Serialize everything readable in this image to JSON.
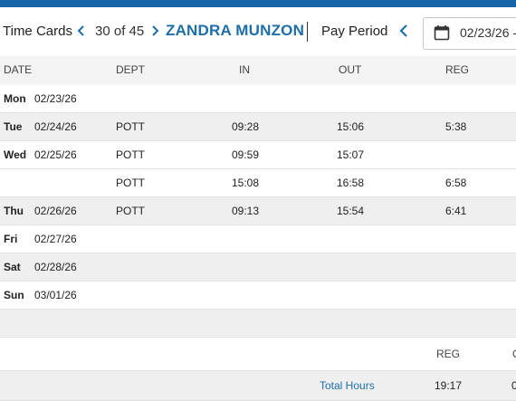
{
  "toolbar": {
    "time_cards_label": "Time Cards",
    "record_position": "30 of 45",
    "employee_name": "ZANDRA MUNZON",
    "pay_period_label": "Pay Period",
    "pay_period_date": "02/23/26 -",
    "icons": [
      "chevron-left-icon",
      "chevron-right-icon",
      "calendar-icon"
    ],
    "accent_color": "#1e6ea8",
    "top_bar_color": "#1565a8"
  },
  "grid": {
    "columns": [
      "DATE",
      "DEPT",
      "IN",
      "OUT",
      "REG"
    ],
    "rows": [
      {
        "day": "Mon",
        "date": "02/23/26",
        "dept": "",
        "in": "",
        "out": "",
        "reg": ""
      },
      {
        "day": "Tue",
        "date": "02/24/26",
        "dept": "POTT",
        "in": "09:28",
        "out": "15:06",
        "reg": "5:38"
      },
      {
        "day": "Wed",
        "date": "02/25/26",
        "dept": "POTT",
        "in": "09:59",
        "out": "15:07",
        "reg": ""
      },
      {
        "day": "",
        "date": "",
        "dept": "POTT",
        "in": "15:08",
        "out": "16:58",
        "reg": "6:58"
      },
      {
        "day": "Thu",
        "date": "02/26/26",
        "dept": "POTT",
        "in": "09:13",
        "out": "15:54",
        "reg": "6:41"
      },
      {
        "day": "Fri",
        "date": "02/27/26",
        "dept": "",
        "in": "",
        "out": "",
        "reg": ""
      },
      {
        "day": "Sat",
        "date": "02/28/26",
        "dept": "",
        "in": "",
        "out": "",
        "reg": ""
      },
      {
        "day": "Sun",
        "date": "03/01/26",
        "dept": "",
        "in": "",
        "out": "",
        "reg": ""
      }
    ]
  },
  "totals": {
    "reg_header": "REG",
    "next_header": "O",
    "label": "Total Hours",
    "reg_value": "19:17",
    "next_value": "0"
  }
}
